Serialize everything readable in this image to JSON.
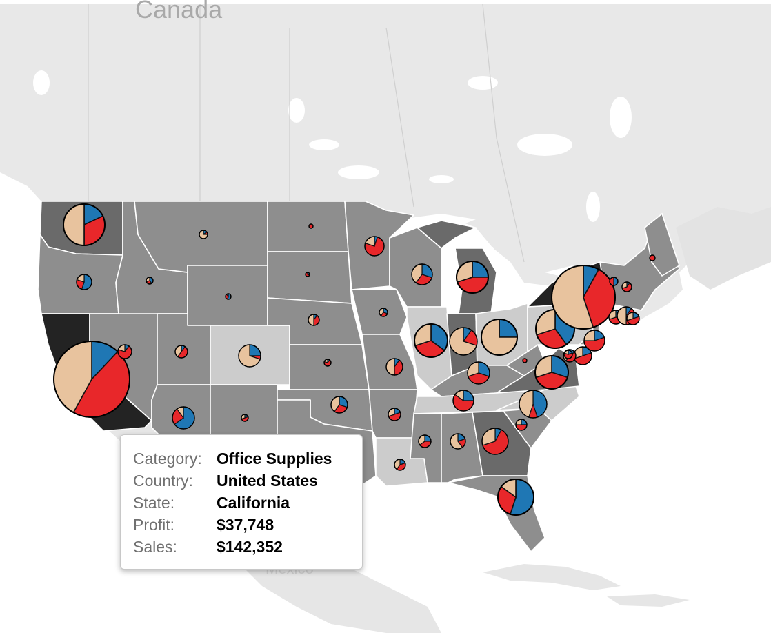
{
  "map": {
    "labels": {
      "canada": "Canada",
      "mexico": "Mexico"
    }
  },
  "legend_colors": {
    "Furniture": "#e8c39e",
    "Office Supplies": "#1f77b4",
    "Technology": "#e8272a"
  },
  "tooltip": {
    "rows": [
      {
        "label": "Category:",
        "value": "Office Supplies"
      },
      {
        "label": "Country:",
        "value": "United States"
      },
      {
        "label": "State:",
        "value": "California"
      },
      {
        "label": "Profit:",
        "value": "$37,748"
      },
      {
        "label": "Sales:",
        "value": "$142,352"
      }
    ]
  },
  "states": [
    {
      "name": "Washington",
      "shade": "#6a6a6a"
    },
    {
      "name": "Oregon",
      "shade": "#8e8e8e"
    },
    {
      "name": "California",
      "shade": "#232323"
    },
    {
      "name": "Nevada",
      "shade": "#8e8e8e"
    },
    {
      "name": "Idaho",
      "shade": "#8e8e8e"
    },
    {
      "name": "Montana",
      "shade": "#8e8e8e"
    },
    {
      "name": "Wyoming",
      "shade": "#8e8e8e"
    },
    {
      "name": "Utah",
      "shade": "#8e8e8e"
    },
    {
      "name": "Arizona",
      "shade": "#8e8e8e"
    },
    {
      "name": "Colorado",
      "shade": "#cccccc"
    },
    {
      "name": "New Mexico",
      "shade": "#8e8e8e"
    },
    {
      "name": "North Dakota",
      "shade": "#8e8e8e"
    },
    {
      "name": "South Dakota",
      "shade": "#8e8e8e"
    },
    {
      "name": "Nebraska",
      "shade": "#8e8e8e"
    },
    {
      "name": "Kansas",
      "shade": "#8e8e8e"
    },
    {
      "name": "Oklahoma",
      "shade": "#8e8e8e"
    },
    {
      "name": "Texas",
      "shade": "#8e8e8e"
    },
    {
      "name": "Minnesota",
      "shade": "#8e8e8e"
    },
    {
      "name": "Iowa",
      "shade": "#8e8e8e"
    },
    {
      "name": "Missouri",
      "shade": "#8e8e8e"
    },
    {
      "name": "Arkansas",
      "shade": "#8e8e8e"
    },
    {
      "name": "Louisiana",
      "shade": "#cccccc"
    },
    {
      "name": "Wisconsin",
      "shade": "#8e8e8e"
    },
    {
      "name": "Illinois",
      "shade": "#cccccc"
    },
    {
      "name": "Michigan",
      "shade": "#6a6a6a"
    },
    {
      "name": "Indiana",
      "shade": "#6a6a6a"
    },
    {
      "name": "Ohio",
      "shade": "#cccccc"
    },
    {
      "name": "Kentucky",
      "shade": "#8e8e8e"
    },
    {
      "name": "Tennessee",
      "shade": "#cccccc"
    },
    {
      "name": "Mississippi",
      "shade": "#8e8e8e"
    },
    {
      "name": "Alabama",
      "shade": "#8e8e8e"
    },
    {
      "name": "Georgia",
      "shade": "#6a6a6a"
    },
    {
      "name": "Florida",
      "shade": "#8e8e8e"
    },
    {
      "name": "South Carolina",
      "shade": "#8e8e8e"
    },
    {
      "name": "North Carolina",
      "shade": "#cccccc"
    },
    {
      "name": "Virginia",
      "shade": "#6a6a6a"
    },
    {
      "name": "West Virginia",
      "shade": "#8e8e8e"
    },
    {
      "name": "Pennsylvania",
      "shade": "#cccccc"
    },
    {
      "name": "New York",
      "shade": "#232323"
    },
    {
      "name": "Maine",
      "shade": "#8e8e8e"
    }
  ],
  "pies": [
    {
      "state": "Washington",
      "slices": [
        0.18,
        0.32,
        0.5
      ]
    },
    {
      "state": "Oregon",
      "slices": [
        0.55,
        0.25,
        0.2
      ]
    },
    {
      "state": "California",
      "slices": [
        0.12,
        0.46,
        0.42
      ]
    },
    {
      "state": "Nevada",
      "slices": [
        0.1,
        0.7,
        0.2
      ]
    },
    {
      "state": "Idaho",
      "slices": [
        0.4,
        0.3,
        0.3
      ]
    },
    {
      "state": "Montana",
      "slices": [
        0.15,
        0.1,
        0.75
      ]
    },
    {
      "state": "Utah",
      "slices": [
        0.1,
        0.5,
        0.4
      ]
    },
    {
      "state": "Colorado",
      "slices": [
        0.25,
        0.05,
        0.7
      ]
    },
    {
      "state": "Arizona",
      "slices": [
        0.65,
        0.25,
        0.1
      ]
    },
    {
      "state": "New Mexico",
      "slices": [
        0.2,
        0.5,
        0.3
      ]
    },
    {
      "state": "North Dakota",
      "slices": [
        0.0,
        1.0,
        0.0
      ]
    },
    {
      "state": "South Dakota",
      "slices": [
        0.3,
        0.7,
        0.0
      ]
    },
    {
      "state": "Nebraska",
      "slices": [
        0.1,
        0.4,
        0.5
      ]
    },
    {
      "state": "Kansas",
      "slices": [
        0.1,
        0.7,
        0.2
      ]
    },
    {
      "state": "Oklahoma",
      "slices": [
        0.3,
        0.3,
        0.4
      ]
    },
    {
      "state": "Texas North",
      "slices": [
        0.55,
        0.35,
        0.1
      ]
    },
    {
      "state": "Minnesota",
      "slices": [
        0.05,
        0.75,
        0.2
      ]
    },
    {
      "state": "Iowa",
      "slices": [
        0.3,
        0.3,
        0.4
      ]
    },
    {
      "state": "Missouri",
      "slices": [
        0.1,
        0.4,
        0.5
      ]
    },
    {
      "state": "Arkansas",
      "slices": [
        0.2,
        0.5,
        0.3
      ]
    },
    {
      "state": "Louisiana",
      "slices": [
        0.2,
        0.4,
        0.4
      ]
    },
    {
      "state": "Wisconsin",
      "slices": [
        0.3,
        0.3,
        0.4
      ]
    },
    {
      "state": "Illinois",
      "slices": [
        0.35,
        0.35,
        0.3
      ]
    },
    {
      "state": "Michigan",
      "slices": [
        0.25,
        0.45,
        0.3
      ]
    },
    {
      "state": "Indiana",
      "slices": [
        0.1,
        0.2,
        0.7
      ]
    },
    {
      "state": "Ohio",
      "slices": [
        0.25,
        0.0,
        0.75
      ]
    },
    {
      "state": "Kentucky",
      "slices": [
        0.3,
        0.4,
        0.3
      ]
    },
    {
      "state": "West Virginia",
      "slices": [
        0.0,
        1.0,
        0.0
      ]
    },
    {
      "state": "Tennessee",
      "slices": [
        0.25,
        0.6,
        0.15
      ]
    },
    {
      "state": "Mississippi",
      "slices": [
        0.25,
        0.4,
        0.35
      ]
    },
    {
      "state": "Alabama",
      "slices": [
        0.2,
        0.2,
        0.6
      ]
    },
    {
      "state": "Georgia",
      "slices": [
        0.08,
        0.62,
        0.3
      ]
    },
    {
      "state": "Florida",
      "slices": [
        0.55,
        0.3,
        0.15
      ]
    },
    {
      "state": "South Carolina",
      "slices": [
        0.25,
        0.5,
        0.25
      ]
    },
    {
      "state": "North Carolina",
      "slices": [
        0.45,
        0.1,
        0.45
      ]
    },
    {
      "state": "Virginia",
      "slices": [
        0.3,
        0.4,
        0.3
      ]
    },
    {
      "state": "Pennsylvania",
      "slices": [
        0.4,
        0.3,
        0.3
      ]
    },
    {
      "state": "New York",
      "slices": [
        0.08,
        0.37,
        0.55
      ]
    },
    {
      "state": "New Jersey",
      "slices": [
        0.2,
        0.55,
        0.25
      ]
    },
    {
      "state": "Delaware",
      "slices": [
        0.2,
        0.5,
        0.3
      ]
    },
    {
      "state": "Maryland",
      "slices": [
        0.15,
        0.45,
        0.4
      ]
    },
    {
      "state": "Connecticut",
      "slices": [
        0.3,
        0.4,
        0.3
      ]
    },
    {
      "state": "Massachusetts",
      "slices": [
        0.1,
        0.4,
        0.5
      ]
    },
    {
      "state": "Rhode Island",
      "slices": [
        0.2,
        0.5,
        0.3
      ]
    },
    {
      "state": "New Hampshire",
      "slices": [
        0.1,
        0.6,
        0.3
      ]
    },
    {
      "state": "Vermont",
      "slices": [
        0.5,
        0.5,
        0.0
      ]
    },
    {
      "state": "Maine",
      "slices": [
        0.0,
        1.0,
        0.0
      ]
    },
    {
      "state": "DC",
      "slices": [
        0.2,
        0.6,
        0.2
      ]
    }
  ]
}
